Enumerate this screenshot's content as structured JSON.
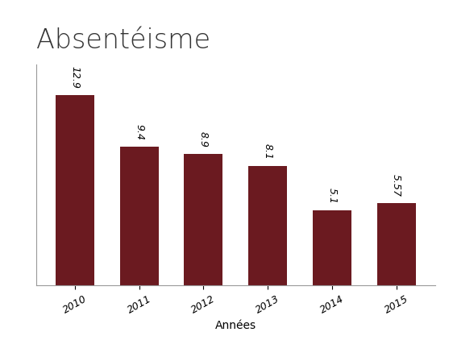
{
  "chart_data": {
    "type": "bar",
    "title": "Absentéisme",
    "categories": [
      "2010",
      "2011",
      "2012",
      "2013",
      "2014",
      "2015"
    ],
    "values": [
      12.9,
      9.4,
      8.9,
      8.1,
      5.1,
      5.57
    ],
    "x_label": "Années",
    "color": "#6b1a20",
    "ylim": [
      0,
      15
    ],
    "yticks": [],
    "grid": false,
    "data_labels": true,
    "tick_labels": "x"
  }
}
